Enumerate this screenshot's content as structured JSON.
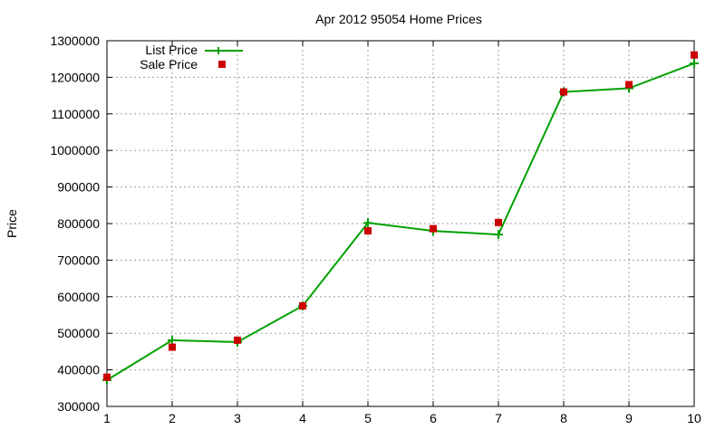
{
  "chart_data": {
    "type": "line",
    "title": "Apr 2012 95054 Home Prices",
    "xlabel": "",
    "ylabel": "Price",
    "xlim": [
      1,
      10
    ],
    "ylim": [
      300000,
      1300000
    ],
    "x_ticks": [
      "1",
      "2",
      "3",
      "4",
      "5",
      "6",
      "7",
      "8",
      "9",
      "10"
    ],
    "y_ticks": [
      "300000",
      "400000",
      "500000",
      "600000",
      "700000",
      "800000",
      "900000",
      "1000000",
      "1100000",
      "1200000",
      "1300000"
    ],
    "grid": true,
    "legend_position": "top-left",
    "x": [
      1,
      2,
      3,
      4,
      5,
      6,
      7,
      8,
      9,
      10
    ],
    "series": [
      {
        "name": "List Price",
        "style": "linespoints",
        "marker": "plus",
        "color": "#00a000",
        "values": [
          372000,
          481000,
          476000,
          575000,
          802000,
          780000,
          770000,
          1160000,
          1170000,
          1238000
        ]
      },
      {
        "name": "Sale Price",
        "style": "points",
        "marker": "square",
        "color": "#cc0000",
        "values": [
          380000,
          462000,
          481000,
          575000,
          780000,
          786000,
          803000,
          1160000,
          1180000,
          1261000
        ]
      }
    ]
  }
}
